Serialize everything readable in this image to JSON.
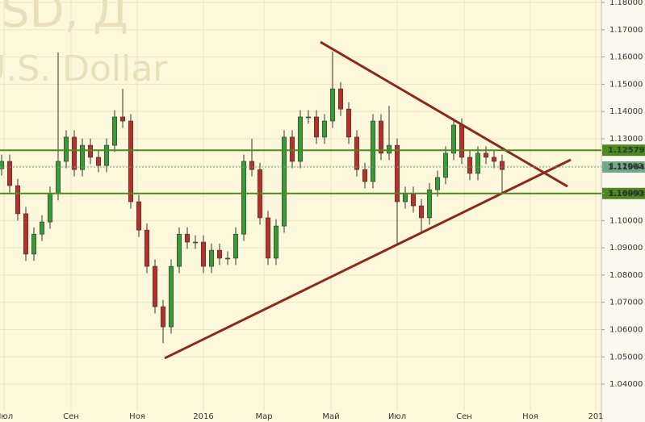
{
  "chart_data": {
    "type": "candlestick",
    "watermark": [
      "USD, Д",
      "U.S. Dollar"
    ],
    "x": [
      0,
      1,
      2,
      3,
      4,
      5,
      6,
      7,
      8,
      9,
      10,
      11,
      12,
      13,
      14,
      15,
      16,
      17,
      18,
      19,
      20,
      21,
      22,
      23,
      24,
      25,
      26,
      27,
      28,
      29,
      30,
      31,
      32,
      33,
      34,
      35,
      36,
      37,
      38,
      39,
      40,
      41,
      42,
      43,
      44,
      45,
      46,
      47,
      48,
      49,
      50,
      51,
      52,
      53,
      54,
      55,
      56,
      57,
      58,
      59,
      60,
      61,
      62
    ],
    "open": [
      1.119,
      1.1217,
      1.1128,
      1.1025,
      1.0877,
      1.095,
      1.0995,
      1.1099,
      1.1217,
      1.1306,
      1.1187,
      1.1276,
      1.1232,
      1.1202,
      1.1276,
      1.138,
      1.1365,
      1.1069,
      1.0965,
      1.0832,
      1.0684,
      1.061,
      1.0832,
      1.095,
      1.0921,
      1.0921,
      1.0832,
      1.0891,
      1.0862,
      1.0862,
      1.095,
      1.1217,
      1.1187,
      1.101,
      1.0862,
      1.098,
      1.1306,
      1.1217,
      1.138,
      1.138,
      1.1306,
      1.1365,
      1.1483,
      1.1409,
      1.1306,
      1.1187,
      1.1143,
      1.1365,
      1.1247,
      1.1276,
      1.1069,
      1.1099,
      1.1054,
      1.101,
      1.1113,
      1.1158,
      1.1247,
      1.135,
      1.1232,
      1.1173,
      1.1247,
      1.1232,
      1.1217
    ],
    "high": [
      1.1242,
      1.1242,
      1.1153,
      1.105,
      1.0975,
      1.102,
      1.1124,
      1.1617,
      1.1331,
      1.1331,
      1.1301,
      1.1301,
      1.1257,
      1.1301,
      1.1405,
      1.1483,
      1.139,
      1.1094,
      1.099,
      1.0857,
      1.0709,
      1.0857,
      1.0975,
      1.0975,
      1.0946,
      1.0946,
      1.0916,
      1.0916,
      1.0887,
      1.0975,
      1.1242,
      1.13,
      1.1212,
      1.1035,
      1.1005,
      1.1331,
      1.1331,
      1.1405,
      1.1405,
      1.1405,
      1.139,
      1.162,
      1.1508,
      1.1434,
      1.1331,
      1.1212,
      1.139,
      1.139,
      1.142,
      1.1301,
      1.1124,
      1.1124,
      1.1079,
      1.1138,
      1.1183,
      1.1272,
      1.1375,
      1.1375,
      1.1257,
      1.1272,
      1.1272,
      1.1257,
      1.1242
    ],
    "low": [
      1.1165,
      1.1103,
      1.1,
      1.0852,
      1.0852,
      1.0925,
      1.097,
      1.1074,
      1.1192,
      1.1162,
      1.1162,
      1.1207,
      1.1177,
      1.1177,
      1.1251,
      1.134,
      1.1044,
      1.094,
      1.0807,
      1.0659,
      1.055,
      1.0585,
      1.0807,
      1.0896,
      1.0896,
      1.0807,
      1.0807,
      1.0837,
      1.0837,
      1.0837,
      1.0925,
      1.1162,
      1.0985,
      1.0837,
      1.0837,
      1.0955,
      1.1192,
      1.1192,
      1.1355,
      1.1281,
      1.1281,
      1.134,
      1.1384,
      1.1281,
      1.1162,
      1.1118,
      1.1118,
      1.1222,
      1.1222,
      1.091,
      1.1044,
      1.1029,
      1.096,
      1.0985,
      1.1088,
      1.1133,
      1.1222,
      1.1207,
      1.1148,
      1.1148,
      1.1207,
      1.1192,
      1.11
    ],
    "close": [
      1.1217,
      1.1128,
      1.1025,
      1.0877,
      1.095,
      1.0995,
      1.1099,
      1.1217,
      1.1306,
      1.1187,
      1.1276,
      1.1232,
      1.1202,
      1.1276,
      1.138,
      1.1365,
      1.1069,
      1.0965,
      1.0832,
      1.0684,
      1.061,
      1.0832,
      1.095,
      1.0921,
      1.0921,
      1.0832,
      1.0891,
      1.0862,
      1.0862,
      1.095,
      1.1217,
      1.1187,
      1.101,
      1.0862,
      1.098,
      1.1306,
      1.1217,
      1.138,
      1.138,
      1.1306,
      1.1365,
      1.1483,
      1.1409,
      1.1306,
      1.1187,
      1.1143,
      1.1365,
      1.1247,
      1.1276,
      1.1069,
      1.1099,
      1.1054,
      1.101,
      1.1113,
      1.1158,
      1.1247,
      1.135,
      1.1232,
      1.1173,
      1.1247,
      1.1232,
      1.1217,
      1.1187
    ],
    "up_color": "#3a9a3a",
    "down_color": "#b5312b",
    "xlim": [
      -0.2,
      74.3
    ],
    "xticks": [
      {
        "value": 0.3,
        "label": "Июл"
      },
      {
        "value": 8.6,
        "label": "Сен"
      },
      {
        "value": 16.8,
        "label": "Ноя"
      },
      {
        "value": 25,
        "label": "2016"
      },
      {
        "value": 32.5,
        "label": "Мар"
      },
      {
        "value": 40.8,
        "label": "Май"
      },
      {
        "value": 49,
        "label": "Июл"
      },
      {
        "value": 57.3,
        "label": "Сен"
      },
      {
        "value": 65.5,
        "label": "Ноя"
      },
      {
        "value": 73.6,
        "label": "201"
      }
    ],
    "ylim": [
      1.0261,
      1.1809
    ],
    "yticks": [
      {
        "value": 1.04,
        "label": "1.04000"
      },
      {
        "value": 1.05,
        "label": "1.05000"
      },
      {
        "value": 1.06,
        "label": "1.06000"
      },
      {
        "value": 1.07,
        "label": "1.07000"
      },
      {
        "value": 1.08,
        "label": "1.08000"
      },
      {
        "value": 1.09,
        "label": "1.09000"
      },
      {
        "value": 1.1,
        "label": "1.10000"
      },
      {
        "value": 1.11,
        "label": "1.11000"
      },
      {
        "value": 1.12,
        "label": "1.12000"
      },
      {
        "value": 1.13,
        "label": "1.13000"
      },
      {
        "value": 1.14,
        "label": "1.14000"
      },
      {
        "value": 1.15,
        "label": "1.15000"
      },
      {
        "value": 1.16,
        "label": "1.16000"
      },
      {
        "value": 1.17,
        "label": "1.17000"
      },
      {
        "value": 1.18,
        "label": "1.18000"
      }
    ],
    "levels": [
      {
        "value": 1.12579,
        "label": "1.12579",
        "color": "#4a8a1e",
        "style": "solid"
      },
      {
        "value": 1.10993,
        "label": "1.10993",
        "color": "#4a8a1e",
        "style": "solid"
      },
      {
        "value": 1.11964,
        "label": "1.11964",
        "color": "#6fa88a",
        "style": "dotted"
      }
    ],
    "trendlines": [
      {
        "x": [
          39.5,
          70.1
        ],
        "y": [
          1.1655,
          1.1125
        ],
        "color": "#8b2a1a"
      },
      {
        "x": [
          20.2,
          70.5
        ],
        "y": [
          1.0495,
          1.1223
        ],
        "color": "#8b2a1a"
      }
    ],
    "grid": true
  }
}
